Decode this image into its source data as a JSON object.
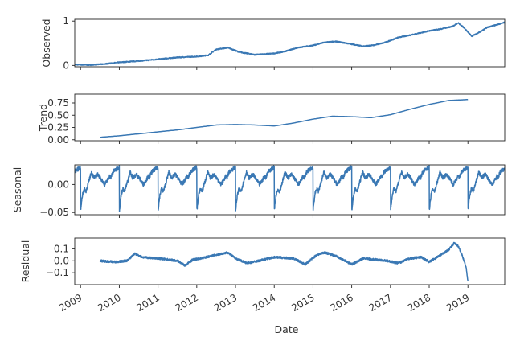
{
  "chart_data": [
    {
      "type": "line",
      "ylabel": "Observed",
      "xlim": [
        2008.85,
        2019.95
      ],
      "ylim": [
        -0.03,
        1.04
      ],
      "yticks": [
        {
          "value": 0,
          "label": "0"
        },
        {
          "value": 1,
          "label": "1"
        }
      ],
      "noise": 0.012,
      "x": [
        2008.85,
        2009.2,
        2009.6,
        2010.0,
        2010.5,
        2011.0,
        2011.5,
        2012.0,
        2012.3,
        2012.5,
        2012.8,
        2013.1,
        2013.5,
        2014.0,
        2014.3,
        2014.6,
        2015.0,
        2015.3,
        2015.6,
        2016.0,
        2016.3,
        2016.6,
        2016.9,
        2017.2,
        2017.6,
        2018.0,
        2018.3,
        2018.6,
        2018.75,
        2018.9,
        2019.1,
        2019.3,
        2019.5,
        2019.8,
        2019.95
      ],
      "y": [
        0.02,
        0.01,
        0.03,
        0.07,
        0.1,
        0.14,
        0.18,
        0.2,
        0.23,
        0.36,
        0.4,
        0.3,
        0.24,
        0.27,
        0.32,
        0.4,
        0.45,
        0.52,
        0.54,
        0.48,
        0.43,
        0.46,
        0.53,
        0.63,
        0.7,
        0.78,
        0.82,
        0.88,
        0.96,
        0.85,
        0.66,
        0.75,
        0.86,
        0.93,
        0.97
      ]
    },
    {
      "type": "line",
      "ylabel": "Trend",
      "xlim": [
        2008.85,
        2019.95
      ],
      "ylim": [
        -0.02,
        0.93
      ],
      "yticks": [
        {
          "value": 0.0,
          "label": "0.00"
        },
        {
          "value": 0.25,
          "label": "0.25"
        },
        {
          "value": 0.5,
          "label": "0.50"
        },
        {
          "value": 0.75,
          "label": "0.75"
        }
      ],
      "noise": 0,
      "x": [
        2009.5,
        2010.0,
        2010.5,
        2011.0,
        2011.5,
        2012.0,
        2012.5,
        2013.0,
        2013.5,
        2014.0,
        2014.5,
        2015.0,
        2015.5,
        2016.0,
        2016.5,
        2017.0,
        2017.5,
        2018.0,
        2018.5,
        2019.0
      ],
      "y": [
        0.05,
        0.08,
        0.12,
        0.16,
        0.2,
        0.25,
        0.3,
        0.31,
        0.3,
        0.28,
        0.34,
        0.42,
        0.48,
        0.47,
        0.45,
        0.51,
        0.62,
        0.72,
        0.8,
        0.82
      ]
    },
    {
      "type": "line",
      "ylabel": "Seasonal",
      "xlim": [
        2008.85,
        2019.95
      ],
      "ylim": [
        -0.054,
        0.035
      ],
      "yticks": [
        {
          "value": 0.0,
          "label": "0.00"
        },
        {
          "value": -0.05,
          "label": "−0.05"
        }
      ],
      "noise": 0.0035,
      "seasonal_pattern": {
        "phase": [
          0,
          0.05,
          0.09,
          0.14,
          0.2,
          0.28,
          0.35,
          0.45,
          0.55,
          0.62,
          0.68,
          0.75,
          0.78,
          0.82,
          0.86,
          0.9,
          0.95,
          1.0
        ],
        "value": [
          -0.047,
          -0.018,
          -0.008,
          -0.012,
          0.002,
          0.022,
          0.012,
          0.018,
          0.008,
          0.0,
          0.006,
          0.015,
          0.012,
          0.02,
          0.024,
          0.026,
          0.028,
          0.031
        ]
      }
    },
    {
      "type": "line",
      "ylabel": "Residual",
      "xlabel": "Date",
      "xlim": [
        2008.85,
        2019.95
      ],
      "ylim": [
        -0.2,
        0.19
      ],
      "yticks": [
        {
          "value": 0.1,
          "label": "0.1"
        },
        {
          "value": 0.0,
          "label": "0.0"
        },
        {
          "value": -0.1,
          "label": "−0.1"
        }
      ],
      "xticks": [
        2009,
        2010,
        2011,
        2012,
        2013,
        2014,
        2015,
        2016,
        2017,
        2018,
        2019
      ],
      "noise": 0.009,
      "x": [
        2009.5,
        2009.9,
        2010.2,
        2010.4,
        2010.6,
        2011.0,
        2011.5,
        2011.7,
        2011.9,
        2012.1,
        2012.5,
        2012.8,
        2013.0,
        2013.3,
        2013.6,
        2014.0,
        2014.5,
        2014.8,
        2015.1,
        2015.3,
        2015.6,
        2016.0,
        2016.3,
        2016.6,
        2016.9,
        2017.2,
        2017.5,
        2017.8,
        2018.0,
        2018.3,
        2018.5,
        2018.65,
        2018.75,
        2018.85,
        2018.95,
        2019.0
      ],
      "y": [
        0.0,
        -0.01,
        0.0,
        0.06,
        0.03,
        0.02,
        0.0,
        -0.04,
        0.01,
        0.02,
        0.05,
        0.07,
        0.02,
        -0.02,
        0.0,
        0.03,
        0.02,
        -0.03,
        0.05,
        0.07,
        0.04,
        -0.03,
        0.02,
        0.01,
        0.0,
        -0.02,
        0.02,
        0.03,
        -0.01,
        0.05,
        0.09,
        0.15,
        0.12,
        0.05,
        -0.05,
        -0.17
      ]
    }
  ]
}
